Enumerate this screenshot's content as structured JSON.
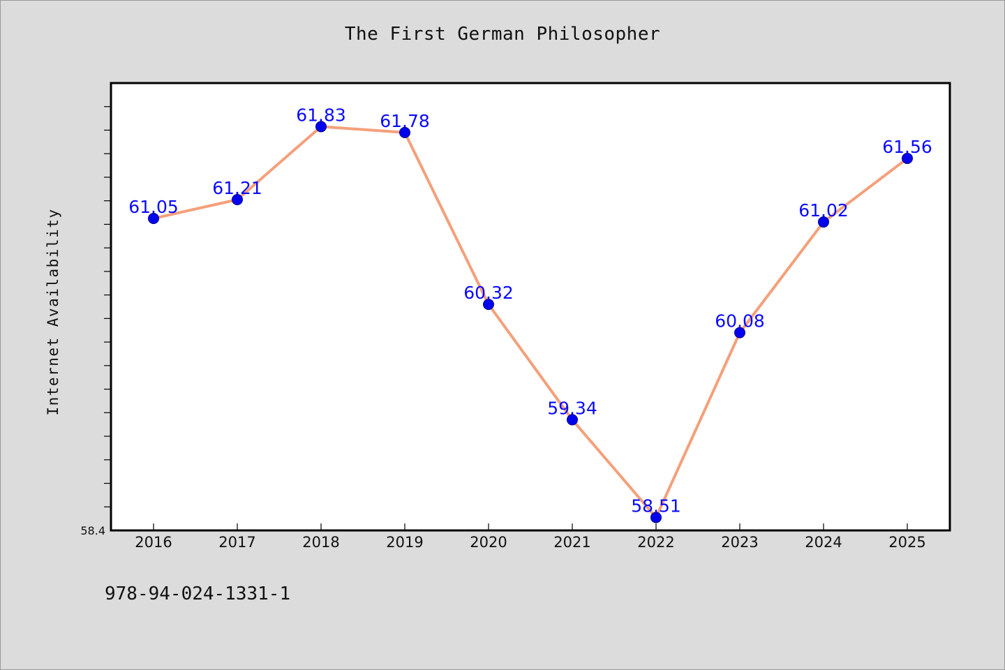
{
  "chart_data": {
    "type": "line",
    "title": "The First German Philosopher",
    "xlabel": "",
    "ylabel": "Internet Availability",
    "categories": [
      "2016",
      "2017",
      "2018",
      "2019",
      "2020",
      "2021",
      "2022",
      "2023",
      "2024",
      "2025"
    ],
    "series": [
      {
        "values": [
          61.05,
          61.21,
          61.83,
          61.78,
          60.32,
          59.34,
          58.51,
          60.08,
          61.02,
          61.56
        ],
        "data_labels": [
          "61.05",
          "61.21",
          "61.83",
          "61.78",
          "60.32",
          "59.34",
          "58.51",
          "60.08",
          "61.02",
          "61.56"
        ],
        "line_color": "#f4a07a",
        "marker_color": "#0000ee"
      }
    ],
    "ylim": [
      58.4,
      62.2
    ],
    "y_tick_label": "58.4",
    "grid": false,
    "legend": "none"
  },
  "footer": {
    "isbn": "978-94-024-1331-1"
  },
  "colors": {
    "background": "#dcdcdc",
    "plot_background": "#ffffff"
  }
}
